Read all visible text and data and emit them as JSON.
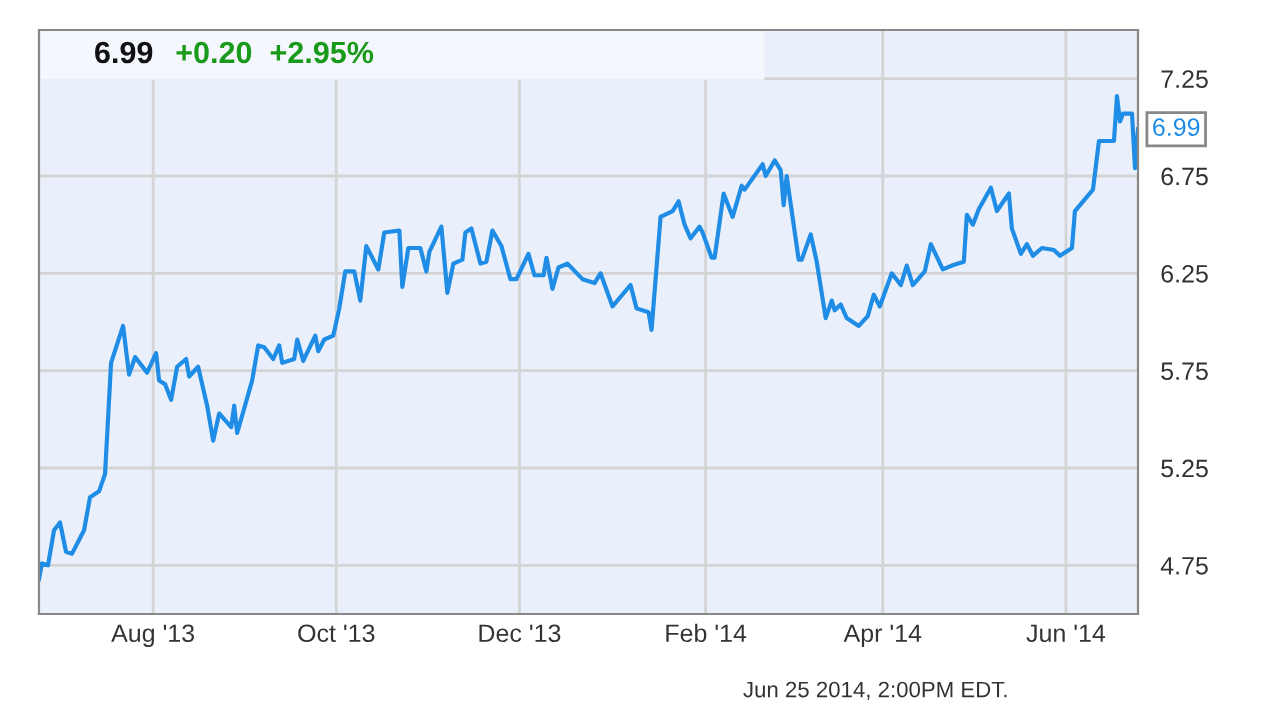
{
  "chart_data": {
    "type": "line",
    "title": "6.99",
    "subtitle": "+0.20  +2.95%",
    "annotations": [
      {
        "text": "6.99",
        "x": "2014-06-25",
        "y": 6.99
      },
      "Jun 25 2014, 2:00PM EDT."
    ],
    "xlim": [
      "2013-06-24",
      "2014-06-25"
    ],
    "xticks": [
      {
        "value": "2013-08-01",
        "label": "Aug '13"
      },
      {
        "value": "2013-10-01",
        "label": "Oct '13"
      },
      {
        "value": "2013-12-01",
        "label": "Dec '13"
      },
      {
        "value": "2014-02-01",
        "label": "Feb '14"
      },
      {
        "value": "2014-04-01",
        "label": "Apr '14"
      },
      {
        "value": "2014-06-01",
        "label": "Jun '14"
      }
    ],
    "ylim": [
      4.5,
      7.5
    ],
    "yticks": [
      4.75,
      5.25,
      5.75,
      6.25,
      6.75,
      7.25
    ],
    "grid": true,
    "legend": false,
    "series": [
      {
        "color": "#1f8ce6",
        "x": [
          "2013-06-24",
          "2013-06-25",
          "2013-06-27",
          "2013-06-29",
          "2013-07-01",
          "2013-07-03",
          "2013-07-05",
          "2013-07-09",
          "2013-07-11",
          "2013-07-14",
          "2013-07-16",
          "2013-07-18",
          "2013-07-22",
          "2013-07-24",
          "2013-07-26",
          "2013-07-30",
          "2013-08-02",
          "2013-08-03",
          "2013-08-05",
          "2013-08-07",
          "2013-08-09",
          "2013-08-12",
          "2013-08-13",
          "2013-08-16",
          "2013-08-19",
          "2013-08-21",
          "2013-08-23",
          "2013-08-27",
          "2013-08-28",
          "2013-08-29",
          "2013-09-03",
          "2013-09-05",
          "2013-09-07",
          "2013-09-10",
          "2013-09-12",
          "2013-09-13",
          "2013-09-17",
          "2013-09-18",
          "2013-09-20",
          "2013-09-24",
          "2013-09-25",
          "2013-09-27",
          "2013-09-30",
          "2013-10-02",
          "2013-10-04",
          "2013-10-07",
          "2013-10-09",
          "2013-10-11",
          "2013-10-15",
          "2013-10-17",
          "2013-10-22",
          "2013-10-23",
          "2013-10-25",
          "2013-10-29",
          "2013-10-31",
          "2013-11-01",
          "2013-11-05",
          "2013-11-07",
          "2013-11-09",
          "2013-11-12",
          "2013-11-13",
          "2013-11-15",
          "2013-11-18",
          "2013-11-20",
          "2013-11-22",
          "2013-11-25",
          "2013-11-28",
          "2013-11-30",
          "2013-12-04",
          "2013-12-06",
          "2013-12-09",
          "2013-12-10",
          "2013-12-12",
          "2013-12-14",
          "2013-12-17",
          "2013-12-22",
          "2013-12-26",
          "2013-12-28",
          "2014-01-01",
          "2014-01-07",
          "2014-01-09",
          "2014-01-13",
          "2014-01-14",
          "2014-01-17",
          "2014-01-21",
          "2014-01-23",
          "2014-01-25",
          "2014-01-27",
          "2014-01-30",
          "2014-01-31",
          "2014-02-03",
          "2014-02-04",
          "2014-02-07",
          "2014-02-10",
          "2014-02-13",
          "2014-02-14",
          "2014-02-20",
          "2014-02-21",
          "2014-02-24",
          "2014-02-26",
          "2014-02-27",
          "2014-02-28",
          "2014-03-04",
          "2014-03-05",
          "2014-03-08",
          "2014-03-10",
          "2014-03-13",
          "2014-03-15",
          "2014-03-16",
          "2014-03-18",
          "2014-03-20",
          "2014-03-24",
          "2014-03-27",
          "2014-03-29",
          "2014-03-31",
          "2014-04-04",
          "2014-04-07",
          "2014-04-09",
          "2014-04-11",
          "2014-04-15",
          "2014-04-17",
          "2014-04-21",
          "2014-04-24",
          "2014-04-28",
          "2014-04-29",
          "2014-05-01",
          "2014-05-03",
          "2014-05-07",
          "2014-05-09",
          "2014-05-13",
          "2014-05-14",
          "2014-05-17",
          "2014-05-19",
          "2014-05-21",
          "2014-05-24",
          "2014-05-28",
          "2014-05-30",
          "2014-06-03",
          "2014-06-04",
          "2014-06-10",
          "2014-06-12",
          "2014-06-17",
          "2014-06-18",
          "2014-06-19",
          "2014-06-20",
          "2014-06-23",
          "2014-06-24",
          "2014-06-25"
        ],
        "values": [
          4.68,
          4.76,
          4.75,
          4.93,
          4.97,
          4.82,
          4.81,
          4.93,
          5.1,
          5.13,
          5.22,
          5.79,
          5.98,
          5.73,
          5.82,
          5.74,
          5.84,
          5.7,
          5.68,
          5.6,
          5.77,
          5.81,
          5.72,
          5.77,
          5.57,
          5.39,
          5.53,
          5.46,
          5.57,
          5.43,
          5.7,
          5.88,
          5.87,
          5.81,
          5.88,
          5.79,
          5.81,
          5.91,
          5.8,
          5.93,
          5.85,
          5.91,
          5.93,
          6.07,
          6.26,
          6.26,
          6.11,
          6.39,
          6.27,
          6.46,
          6.47,
          6.18,
          6.38,
          6.38,
          6.26,
          6.36,
          6.49,
          6.15,
          6.3,
          6.32,
          6.46,
          6.48,
          6.3,
          6.31,
          6.47,
          6.39,
          6.22,
          6.22,
          6.35,
          6.24,
          6.24,
          6.33,
          6.17,
          6.28,
          6.3,
          6.22,
          6.2,
          6.25,
          6.08,
          6.19,
          6.07,
          6.05,
          5.96,
          6.54,
          6.57,
          6.62,
          6.5,
          6.43,
          6.49,
          6.46,
          6.33,
          6.33,
          6.66,
          6.54,
          6.7,
          6.68,
          6.81,
          6.75,
          6.83,
          6.78,
          6.6,
          6.75,
          6.32,
          6.32,
          6.45,
          6.31,
          6.02,
          6.11,
          6.06,
          6.09,
          6.02,
          5.98,
          6.03,
          6.14,
          6.08,
          6.25,
          6.19,
          6.29,
          6.19,
          6.26,
          6.4,
          6.27,
          6.29,
          6.31,
          6.55,
          6.5,
          6.58,
          6.69,
          6.57,
          6.66,
          6.48,
          6.35,
          6.4,
          6.34,
          6.38,
          6.37,
          6.34,
          6.38,
          6.57,
          6.68,
          6.93,
          6.93,
          7.16,
          7.03,
          7.07,
          7.07,
          6.79,
          6.99
        ]
      }
    ]
  }
}
